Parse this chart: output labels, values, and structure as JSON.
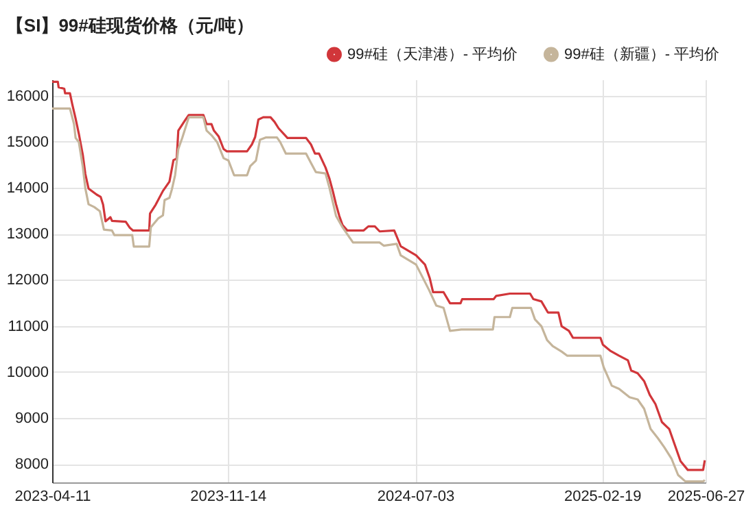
{
  "chart_data": {
    "type": "line",
    "title": "【SI】99#硅现货价格（元/吨）",
    "series": [
      {
        "name": "99#硅（天津港）- 平均价",
        "color": "#d1363a",
        "x": [
          "2023-04-11",
          "2023-04-18",
          "2023-04-19",
          "2023-04-26",
          "2023-04-27",
          "2023-05-03",
          "2023-05-06",
          "2023-05-10",
          "2023-05-14",
          "2023-05-19",
          "2023-05-22",
          "2023-05-26",
          "2023-06-05",
          "2023-06-10",
          "2023-06-13",
          "2023-06-16",
          "2023-06-22",
          "2023-06-24",
          "2023-07-11",
          "2023-07-16",
          "2023-07-20",
          "2023-08-09",
          "2023-08-10",
          "2023-08-17",
          "2023-08-26",
          "2023-09-03",
          "2023-09-08",
          "2023-09-12",
          "2023-09-14",
          "2023-09-23",
          "2023-09-27",
          "2023-10-15",
          "2023-10-19",
          "2023-10-25",
          "2023-10-28",
          "2023-11-03",
          "2023-11-09",
          "2023-11-13",
          "2023-12-08",
          "2023-12-14",
          "2023-12-18",
          "2023-12-22",
          "2023-12-28",
          "2024-01-06",
          "2024-01-11",
          "2024-01-16",
          "2024-01-27",
          "2024-02-19",
          "2024-02-25",
          "2024-03-01",
          "2024-03-06",
          "2024-03-14",
          "2024-03-19",
          "2024-03-23",
          "2024-03-27",
          "2024-03-31",
          "2024-04-04",
          "2024-04-10",
          "2024-04-30",
          "2024-05-06",
          "2024-05-14",
          "2024-05-20",
          "2024-06-07",
          "2024-06-15",
          "2024-07-04",
          "2024-07-15",
          "2024-07-21",
          "2024-07-25",
          "2024-08-07",
          "2024-08-15",
          "2024-08-28",
          "2024-08-30",
          "2024-10-08",
          "2024-10-11",
          "2024-10-28",
          "2024-11-22",
          "2024-11-26",
          "2024-12-06",
          "2024-12-14",
          "2024-12-27",
          "2024-12-31",
          "2025-01-09",
          "2025-01-14",
          "2025-02-17",
          "2025-02-20",
          "2025-03-01",
          "2025-03-12",
          "2025-03-23",
          "2025-03-27",
          "2025-04-04",
          "2025-04-12",
          "2025-04-19",
          "2025-04-26",
          "2025-05-04",
          "2025-05-13",
          "2025-05-20",
          "2025-05-27",
          "2025-06-05",
          "2025-06-24",
          "2025-06-26"
        ],
        "values": [
          16300,
          16300,
          16180,
          16150,
          16050,
          16050,
          15800,
          15500,
          15170,
          14700,
          14300,
          13980,
          13850,
          13800,
          13630,
          13270,
          13360,
          13280,
          13260,
          13130,
          13070,
          13070,
          13440,
          13630,
          13930,
          14130,
          14600,
          14630,
          15240,
          15480,
          15580,
          15580,
          15380,
          15380,
          15240,
          15110,
          14840,
          14790,
          14790,
          14940,
          15100,
          15480,
          15530,
          15530,
          15430,
          15290,
          15080,
          15080,
          14940,
          14740,
          14740,
          14440,
          14190,
          13930,
          13640,
          13390,
          13190,
          13070,
          13070,
          13160,
          13160,
          13050,
          13070,
          12730,
          12530,
          12330,
          12030,
          11730,
          11730,
          11490,
          11490,
          11580,
          11580,
          11650,
          11700,
          11700,
          11580,
          11530,
          11290,
          11290,
          10990,
          10890,
          10740,
          10740,
          10590,
          10460,
          10350,
          10250,
          10030,
          9970,
          9800,
          9500,
          9300,
          8910,
          8760,
          8410,
          8060,
          7870,
          7870,
          8080
        ]
      },
      {
        "name": "99#硅（新疆）- 平均价",
        "color": "#c5b59b",
        "x": [
          "2023-04-11",
          "2023-05-03",
          "2023-05-08",
          "2023-05-10",
          "2023-05-14",
          "2023-05-19",
          "2023-05-22",
          "2023-05-26",
          "2023-06-02",
          "2023-06-09",
          "2023-06-14",
          "2023-06-24",
          "2023-06-27",
          "2023-07-19",
          "2023-07-21",
          "2023-08-09",
          "2023-08-11",
          "2023-08-20",
          "2023-08-26",
          "2023-08-28",
          "2023-09-03",
          "2023-09-06",
          "2023-09-10",
          "2023-09-14",
          "2023-09-19",
          "2023-09-27",
          "2023-10-15",
          "2023-10-19",
          "2023-10-25",
          "2023-11-01",
          "2023-11-09",
          "2023-11-15",
          "2023-11-22",
          "2023-12-08",
          "2023-12-12",
          "2023-12-19",
          "2023-12-24",
          "2023-12-31",
          "2024-01-14",
          "2024-01-18",
          "2024-01-25",
          "2024-02-19",
          "2024-02-25",
          "2024-03-02",
          "2024-03-14",
          "2024-03-19",
          "2024-03-27",
          "2024-04-04",
          "2024-04-17",
          "2024-05-20",
          "2024-05-25",
          "2024-06-10",
          "2024-06-15",
          "2024-07-04",
          "2024-07-20",
          "2024-07-29",
          "2024-08-07",
          "2024-08-15",
          "2024-08-29",
          "2024-10-07",
          "2024-10-09",
          "2024-10-28",
          "2024-10-31",
          "2024-11-23",
          "2024-11-28",
          "2024-12-06",
          "2024-12-13",
          "2024-12-20",
          "2024-12-31",
          "2025-01-07",
          "2025-02-17",
          "2025-02-21",
          "2025-02-26",
          "2025-03-03",
          "2025-03-12",
          "2025-03-25",
          "2025-04-04",
          "2025-04-12",
          "2025-04-20",
          "2025-04-29",
          "2025-05-07",
          "2025-05-16",
          "2025-05-24",
          "2025-06-02",
          "2025-06-24",
          "2025-06-26"
        ],
        "values": [
          15720,
          15720,
          15380,
          15080,
          14990,
          14440,
          13990,
          13640,
          13580,
          13490,
          13090,
          13070,
          12970,
          12970,
          12720,
          12720,
          13140,
          13330,
          13400,
          13730,
          13780,
          13960,
          14270,
          14840,
          15090,
          15530,
          15530,
          15240,
          15140,
          14990,
          14640,
          14590,
          14270,
          14270,
          14470,
          14590,
          15040,
          15090,
          15090,
          14990,
          14740,
          14740,
          14540,
          14340,
          14310,
          13990,
          13390,
          13140,
          12810,
          12810,
          12740,
          12780,
          12530,
          12330,
          11780,
          11440,
          11390,
          10890,
          10920,
          10920,
          11190,
          11190,
          11390,
          11390,
          11140,
          10990,
          10690,
          10560,
          10440,
          10350,
          10350,
          10100,
          9900,
          9700,
          9630,
          9450,
          9400,
          9200,
          8760,
          8560,
          8360,
          8110,
          7760,
          7620,
          7620,
          7650
        ]
      }
    ],
    "xlim": [
      "2023-04-11",
      "2025-06-27"
    ],
    "xticks": [
      "2023-04-11",
      "2023-11-14",
      "2024-07-03",
      "2025-02-19",
      "2025-06-27"
    ],
    "ylim": [
      7600,
      16350
    ],
    "yticks": [
      8000,
      9000,
      10000,
      11000,
      12000,
      13000,
      14000,
      15000,
      16000
    ],
    "grid": true,
    "legend": "top right",
    "marker": "none",
    "line_style": "solid"
  }
}
